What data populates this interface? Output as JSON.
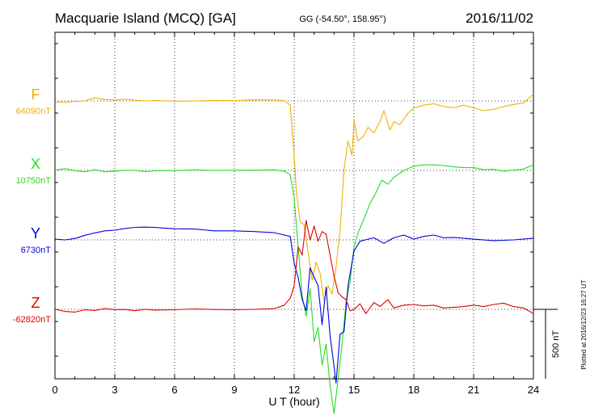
{
  "chart_data": {
    "type": "line",
    "title": "Macquarie Island (MCQ)  [GA]",
    "coords": "GG (-54.50°, 158.95°)",
    "date": "2016/11/02",
    "xlabel": "U T (hour)",
    "xlim": [
      0,
      24
    ],
    "xticks": [
      "0",
      "3",
      "6",
      "9",
      "12",
      "15",
      "18",
      "21",
      "24"
    ],
    "grid": "dotted vertical lines every 3 hours, dotted horizontal baseline per component",
    "scale_bar_label": "500 nT",
    "plotted_note": "Plotted at 2016/12/23 16:27 UT",
    "series": [
      {
        "name": "F",
        "baseline_label": "64090nT",
        "baseline": 64090,
        "color": "#f0b000",
        "points": [
          [
            0,
            64084
          ],
          [
            0.5,
            64081
          ],
          [
            1,
            64087
          ],
          [
            1.5,
            64090
          ],
          [
            2,
            64112
          ],
          [
            2.5,
            64100
          ],
          [
            3,
            64097
          ],
          [
            3.5,
            64103
          ],
          [
            4,
            64095
          ],
          [
            4.5,
            64090
          ],
          [
            5,
            64093
          ],
          [
            6,
            64088
          ],
          [
            7,
            64090
          ],
          [
            8,
            64093
          ],
          [
            9,
            64092
          ],
          [
            10,
            64098
          ],
          [
            11,
            64097
          ],
          [
            11.5,
            64093
          ],
          [
            11.8,
            64060
          ],
          [
            12,
            63700
          ],
          [
            12.1,
            63450
          ],
          [
            12.3,
            63220
          ],
          [
            12.5,
            63200
          ],
          [
            12.7,
            63000
          ],
          [
            12.9,
            62800
          ],
          [
            13.1,
            62930
          ],
          [
            13.3,
            62850
          ],
          [
            13.5,
            62650
          ],
          [
            13.7,
            62760
          ],
          [
            13.9,
            62700
          ],
          [
            14.1,
            62900
          ],
          [
            14.3,
            63150
          ],
          [
            14.5,
            63600
          ],
          [
            14.7,
            63800
          ],
          [
            14.9,
            63700
          ],
          [
            15,
            63950
          ],
          [
            15.2,
            63800
          ],
          [
            15.5,
            63840
          ],
          [
            15.7,
            63900
          ],
          [
            16,
            63860
          ],
          [
            16.3,
            63940
          ],
          [
            16.5,
            64020
          ],
          [
            16.8,
            63880
          ],
          [
            17,
            63940
          ],
          [
            17.3,
            63920
          ],
          [
            17.7,
            64000
          ],
          [
            18,
            64040
          ],
          [
            18.5,
            64060
          ],
          [
            19,
            64070
          ],
          [
            19.5,
            64050
          ],
          [
            20,
            64040
          ],
          [
            20.5,
            64060
          ],
          [
            21,
            64040
          ],
          [
            21.5,
            64020
          ],
          [
            22,
            64030
          ],
          [
            22.5,
            64050
          ],
          [
            23,
            64065
          ],
          [
            23.5,
            64075
          ],
          [
            24,
            64140
          ]
        ]
      },
      {
        "name": "X",
        "baseline_label": "10750nT",
        "baseline": 10750,
        "color": "#22dd22",
        "points": [
          [
            0,
            10752
          ],
          [
            0.5,
            10763
          ],
          [
            1,
            10748
          ],
          [
            1.5,
            10740
          ],
          [
            2,
            10755
          ],
          [
            2.5,
            10740
          ],
          [
            3,
            10745
          ],
          [
            3.5,
            10752
          ],
          [
            4,
            10750
          ],
          [
            4.5,
            10742
          ],
          [
            5,
            10747
          ],
          [
            6,
            10749
          ],
          [
            7,
            10754
          ],
          [
            8,
            10750
          ],
          [
            9,
            10752
          ],
          [
            10,
            10752
          ],
          [
            11,
            10754
          ],
          [
            11.5,
            10745
          ],
          [
            11.8,
            10720
          ],
          [
            12,
            10550
          ],
          [
            12.2,
            10200
          ],
          [
            12.4,
            9850
          ],
          [
            12.6,
            9700
          ],
          [
            12.8,
            9900
          ],
          [
            13,
            9520
          ],
          [
            13.2,
            9620
          ],
          [
            13.4,
            9350
          ],
          [
            13.6,
            9500
          ],
          [
            13.8,
            9200
          ],
          [
            14,
            9000
          ],
          [
            14.2,
            9250
          ],
          [
            14.4,
            9500
          ],
          [
            14.6,
            9800
          ],
          [
            14.8,
            9950
          ],
          [
            15,
            10200
          ],
          [
            15.2,
            10300
          ],
          [
            15.5,
            10400
          ],
          [
            15.8,
            10510
          ],
          [
            16.1,
            10590
          ],
          [
            16.4,
            10680
          ],
          [
            16.7,
            10650
          ],
          [
            17,
            10700
          ],
          [
            17.5,
            10750
          ],
          [
            18,
            10780
          ],
          [
            18.5,
            10790
          ],
          [
            19,
            10790
          ],
          [
            19.5,
            10785
          ],
          [
            20,
            10777
          ],
          [
            20.5,
            10770
          ],
          [
            21,
            10770
          ],
          [
            21.5,
            10755
          ],
          [
            22,
            10758
          ],
          [
            22.5,
            10745
          ],
          [
            23,
            10752
          ],
          [
            23.5,
            10760
          ],
          [
            24,
            10790
          ]
        ]
      },
      {
        "name": "Y",
        "baseline_label": "6730nT",
        "baseline": 6730,
        "color": "#0000dd",
        "points": [
          [
            0,
            6735
          ],
          [
            0.5,
            6730
          ],
          [
            1,
            6740
          ],
          [
            1.5,
            6763
          ],
          [
            2,
            6780
          ],
          [
            2.5,
            6795
          ],
          [
            3,
            6800
          ],
          [
            3.5,
            6812
          ],
          [
            4,
            6820
          ],
          [
            4.5,
            6822
          ],
          [
            5,
            6820
          ],
          [
            5.5,
            6815
          ],
          [
            6,
            6810
          ],
          [
            7,
            6808
          ],
          [
            8,
            6795
          ],
          [
            9,
            6795
          ],
          [
            10,
            6790
          ],
          [
            11,
            6782
          ],
          [
            11.5,
            6765
          ],
          [
            11.8,
            6755
          ],
          [
            12,
            6560
          ],
          [
            12.2,
            6460
          ],
          [
            12.4,
            6300
          ],
          [
            12.6,
            6220
          ],
          [
            12.8,
            6530
          ],
          [
            13,
            6460
          ],
          [
            13.2,
            6400
          ],
          [
            13.4,
            6120
          ],
          [
            13.6,
            6390
          ],
          [
            13.8,
            6040
          ],
          [
            14,
            5820
          ],
          [
            14.1,
            5700
          ],
          [
            14.3,
            6050
          ],
          [
            14.5,
            6070
          ],
          [
            14.7,
            6400
          ],
          [
            15,
            6650
          ],
          [
            15.3,
            6720
          ],
          [
            15.7,
            6735
          ],
          [
            16,
            6745
          ],
          [
            16.5,
            6705
          ],
          [
            17,
            6745
          ],
          [
            17.5,
            6765
          ],
          [
            18,
            6735
          ],
          [
            18.5,
            6755
          ],
          [
            19,
            6765
          ],
          [
            19.5,
            6745
          ],
          [
            20,
            6748
          ],
          [
            21,
            6735
          ],
          [
            22,
            6725
          ],
          [
            23,
            6730
          ],
          [
            24,
            6742
          ]
        ]
      },
      {
        "name": "Z",
        "baseline_label": "-62820nT",
        "baseline": -62820,
        "color": "#dd0000",
        "points": [
          [
            0,
            -62818
          ],
          [
            0.5,
            -62835
          ],
          [
            1,
            -62840
          ],
          [
            1.5,
            -62823
          ],
          [
            2,
            -62828
          ],
          [
            2.5,
            -62815
          ],
          [
            3,
            -62822
          ],
          [
            3.5,
            -62821
          ],
          [
            4,
            -62830
          ],
          [
            4.5,
            -62820
          ],
          [
            5,
            -62825
          ],
          [
            6,
            -62823
          ],
          [
            7,
            -62817
          ],
          [
            8,
            -62821
          ],
          [
            9,
            -62823
          ],
          [
            10,
            -62820
          ],
          [
            11,
            -62815
          ],
          [
            11.5,
            -62790
          ],
          [
            11.8,
            -62740
          ],
          [
            12,
            -62650
          ],
          [
            12.2,
            -62370
          ],
          [
            12.4,
            -62430
          ],
          [
            12.6,
            -62180
          ],
          [
            12.8,
            -62320
          ],
          [
            13,
            -62220
          ],
          [
            13.2,
            -62330
          ],
          [
            13.4,
            -62260
          ],
          [
            13.6,
            -62280
          ],
          [
            13.8,
            -62430
          ],
          [
            14,
            -62580
          ],
          [
            14.2,
            -62700
          ],
          [
            14.4,
            -62730
          ],
          [
            14.6,
            -62750
          ],
          [
            14.8,
            -62830
          ],
          [
            15,
            -62820
          ],
          [
            15.3,
            -62780
          ],
          [
            15.6,
            -62850
          ],
          [
            16,
            -62770
          ],
          [
            16.3,
            -62800
          ],
          [
            16.7,
            -62750
          ],
          [
            17,
            -62810
          ],
          [
            17.5,
            -62790
          ],
          [
            18,
            -62785
          ],
          [
            18.5,
            -62795
          ],
          [
            19,
            -62790
          ],
          [
            19.5,
            -62810
          ],
          [
            20,
            -62805
          ],
          [
            20.5,
            -62800
          ],
          [
            21,
            -62790
          ],
          [
            21.5,
            -62800
          ],
          [
            22,
            -62785
          ],
          [
            22.5,
            -62775
          ],
          [
            23,
            -62800
          ],
          [
            23.5,
            -62810
          ],
          [
            24,
            -62850
          ]
        ]
      }
    ]
  }
}
